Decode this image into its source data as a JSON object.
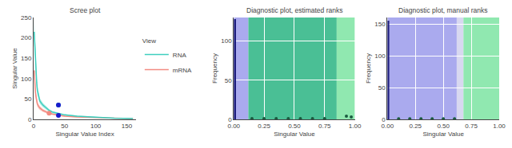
{
  "chart_data": [
    {
      "type": "line",
      "title": "Scree plot",
      "xlabel": "Singular Value Index",
      "ylabel": "Singular Value",
      "xlim": [
        0,
        165
      ],
      "ylim": [
        0,
        250
      ],
      "xticks": [
        0,
        50,
        100,
        150
      ],
      "yticks": [
        0,
        50,
        100,
        150,
        200,
        250
      ],
      "grid": true,
      "legend": "right",
      "legend_title": "View",
      "x": [
        1,
        2,
        3,
        4,
        5,
        6,
        8,
        10,
        15,
        20,
        25,
        30,
        40,
        50,
        70,
        100,
        130,
        160
      ],
      "series": [
        {
          "name": "mRNA",
          "color": "#F28B82",
          "values": [
            120,
            80,
            65,
            55,
            45,
            38,
            32,
            28,
            22,
            18,
            15,
            13,
            10,
            8,
            6,
            4,
            3,
            2
          ],
          "lower": [
            98.4,
            65.6,
            53.3,
            45.1,
            36.9,
            31.16,
            26.24,
            22.96,
            18.04,
            14.76,
            12.3,
            10.66,
            8.2,
            6.56,
            4.92,
            3.28,
            2.46,
            1.64
          ],
          "upper": [
            141.6,
            94.4,
            76.7,
            64.9,
            53.1,
            44.84,
            37.76,
            33.04,
            25.96,
            21.24,
            17.7,
            15.34,
            11.8,
            9.44,
            7.08,
            4.72,
            3.54,
            2.36
          ]
        },
        {
          "name": "RNA",
          "color": "#3ECFBF",
          "values": [
            215,
            175,
            135,
            110,
            90,
            72,
            55,
            45,
            35,
            28,
            22,
            18,
            14,
            11,
            8,
            5,
            3,
            2
          ],
          "lower": [
            182.75,
            148.75,
            114.75,
            93.5,
            76.5,
            61.2,
            46.75,
            38.25,
            29.75,
            23.8,
            18.7,
            15.3,
            11.9,
            9.35,
            6.8,
            4.25,
            2.55,
            1.7
          ],
          "upper": [
            247.25,
            201.25,
            155.25,
            126.5,
            103.5,
            82.8,
            63.25,
            51.75,
            40.25,
            32.2,
            25.3,
            20.7,
            16.1,
            12.65,
            9.2,
            5.75,
            3.45,
            2.3
          ]
        }
      ],
      "points": [
        {
          "x": 25,
          "y": 15,
          "color": "#F28B82"
        },
        {
          "x": 40,
          "y": 35,
          "color": "#3ECFBF"
        },
        {
          "x": 40,
          "y": 10,
          "color": "#1a1aCC"
        },
        {
          "x": 40,
          "y": 35,
          "color": "#1a1aCC"
        }
      ]
    },
    {
      "type": "bar",
      "title": "Diagnostic plot, estimated ranks",
      "xlabel": "Singular Value",
      "ylabel": "Frequency",
      "xlim": [
        0.0,
        1.0
      ],
      "ylim": [
        0,
        130
      ],
      "xticks": [
        {
          "value": 0,
          "label": "0.00"
        },
        0.25,
        {
          "value": 0.5,
          "label": "0.50"
        },
        0.75,
        {
          "value": 1,
          "label": "1.00"
        }
      ],
      "yticks": [
        0,
        50,
        100
      ],
      "grid": true,
      "regions": [
        {
          "x0": 0.0,
          "x1": 0.12,
          "color": "#aaaaee"
        },
        {
          "x0": 0.12,
          "x1": 0.85,
          "color": "#4abf95"
        },
        {
          "x0": 0.85,
          "x1": 1.0,
          "color": "#90e8b0"
        }
      ],
      "bars": [
        {
          "x": 0.0,
          "width": 0.018,
          "value": 128,
          "color": "#1a1a7a"
        }
      ],
      "points": {
        "x": [
          0.15,
          0.25,
          0.35,
          0.45,
          0.55,
          0.65,
          0.75,
          0.93,
          0.97
        ],
        "y": [
          1,
          1,
          1,
          1,
          1,
          1,
          1,
          4,
          3
        ],
        "color": "#1a5c40"
      }
    },
    {
      "type": "bar",
      "title": "Diagnostic plot, manual ranks",
      "xlabel": "Singular Value",
      "ylabel": "Frequency",
      "xlim": [
        0.0,
        1.0
      ],
      "ylim": [
        0,
        160
      ],
      "xticks": [
        {
          "value": 0,
          "label": "0.00"
        },
        0.25,
        {
          "value": 0.5,
          "label": "0.50"
        },
        0.75,
        {
          "value": 1,
          "label": "1.00"
        }
      ],
      "yticks": [
        0,
        50,
        100,
        150
      ],
      "grid": true,
      "regions": [
        {
          "x0": 0.0,
          "x1": 0.62,
          "color": "#aaaaee"
        },
        {
          "x0": 0.62,
          "x1": 0.68,
          "color": "#d8d8f0"
        },
        {
          "x0": 0.68,
          "x1": 1.0,
          "color": "#90e8b0"
        }
      ],
      "bars": [
        {
          "x": 0.0,
          "width": 0.016,
          "value": 155,
          "color": "#1a1a7a"
        }
      ],
      "points": {
        "x": [
          0.1,
          0.2,
          0.3,
          0.4,
          0.5,
          0.6
        ],
        "y": [
          1,
          1,
          1,
          1,
          1,
          1
        ],
        "color": "#1a5c40"
      }
    }
  ]
}
